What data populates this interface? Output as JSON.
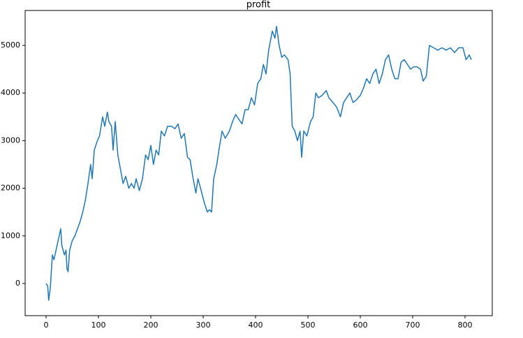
{
  "chart_data": {
    "type": "line",
    "title": "profit",
    "x": [
      0,
      3,
      5,
      8,
      12,
      15,
      20,
      25,
      28,
      30,
      35,
      38,
      40,
      42,
      45,
      50,
      55,
      60,
      65,
      70,
      75,
      80,
      85,
      88,
      92,
      98,
      102,
      108,
      112,
      117,
      120,
      125,
      128,
      132,
      137,
      142,
      147,
      152,
      158,
      163,
      168,
      172,
      178,
      184,
      190,
      195,
      200,
      205,
      210,
      215,
      220,
      226,
      232,
      240,
      246,
      252,
      258,
      264,
      270,
      275,
      280,
      286,
      290,
      295,
      302,
      308,
      312,
      316,
      320,
      326,
      330,
      336,
      342,
      350,
      356,
      362,
      368,
      374,
      380,
      386,
      392,
      398,
      404,
      410,
      415,
      420,
      425,
      432,
      437,
      440,
      445,
      450,
      455,
      462,
      466,
      470,
      475,
      480,
      485,
      488,
      492,
      498,
      505,
      510,
      515,
      520,
      527,
      535,
      540,
      548,
      555,
      562,
      568,
      574,
      580,
      586,
      592,
      600,
      606,
      612,
      618,
      624,
      630,
      636,
      642,
      648,
      654,
      660,
      666,
      672,
      678,
      684,
      690,
      696,
      702,
      708,
      715,
      720,
      726,
      732,
      740,
      748,
      756,
      764,
      772,
      780,
      788,
      796,
      802,
      808,
      812
    ],
    "series": [
      {
        "name": "profit",
        "color": "#1f77b4",
        "values": [
          0,
          -50,
          -350,
          -100,
          600,
          500,
          750,
          1000,
          1150,
          800,
          600,
          700,
          300,
          250,
          700,
          900,
          1000,
          1150,
          1300,
          1500,
          1750,
          2100,
          2500,
          2200,
          2800,
          3000,
          3100,
          3500,
          3300,
          3600,
          3400,
          3300,
          2800,
          3400,
          2700,
          2400,
          2100,
          2250,
          2000,
          2100,
          2000,
          2200,
          1950,
          2200,
          2700,
          2600,
          2900,
          2500,
          2800,
          2700,
          3200,
          3100,
          3300,
          3300,
          3250,
          3350,
          3050,
          3150,
          2650,
          2600,
          2250,
          1900,
          2200,
          2000,
          1700,
          1500,
          1550,
          1500,
          2200,
          2500,
          2800,
          3200,
          3050,
          3200,
          3400,
          3550,
          3450,
          3350,
          3650,
          3650,
          3900,
          3750,
          4200,
          4300,
          4600,
          4400,
          4900,
          5300,
          5150,
          5400,
          5000,
          4750,
          4800,
          4700,
          4400,
          3300,
          3200,
          3000,
          3200,
          2650,
          3200,
          3100,
          3400,
          3500,
          4000,
          3900,
          3950,
          4050,
          3900,
          3800,
          3700,
          3500,
          3800,
          3900,
          4000,
          3800,
          3850,
          3950,
          4100,
          4300,
          4200,
          4400,
          4500,
          4200,
          4400,
          4700,
          4800,
          4500,
          4300,
          4300,
          4650,
          4700,
          4600,
          4500,
          4550,
          4550,
          4500,
          4250,
          4350,
          5000,
          4950,
          4900,
          4950,
          4900,
          4950,
          4850,
          4950,
          4950,
          4700,
          4800,
          4700
        ]
      }
    ],
    "xlim": [
      -40,
      852
    ],
    "ylim": [
      -675,
      5733
    ],
    "xticks": [
      0,
      100,
      200,
      300,
      400,
      500,
      600,
      700,
      800
    ],
    "yticks": [
      0,
      1000,
      2000,
      3000,
      4000,
      5000
    ]
  }
}
